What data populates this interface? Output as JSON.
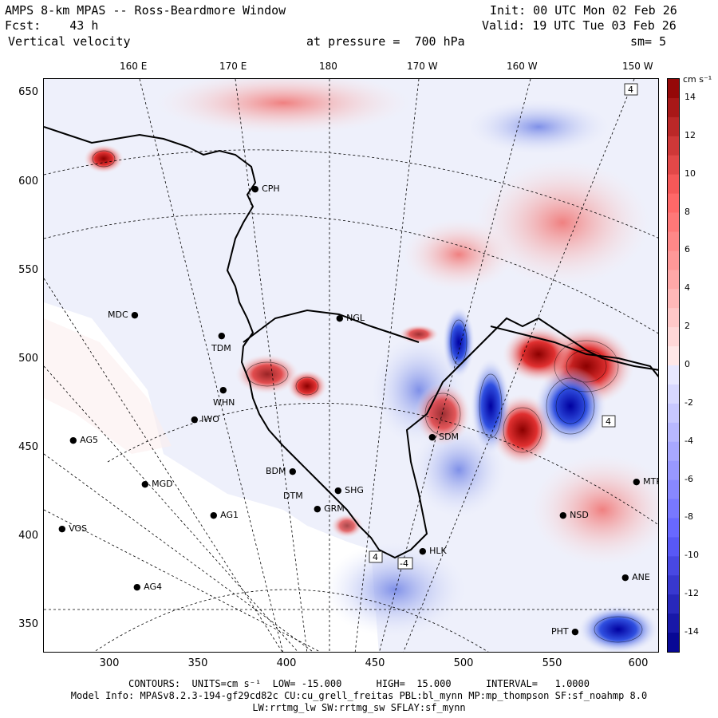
{
  "header": {
    "title": "AMPS 8-km MPAS -- Ross-Beardmore Window",
    "fcst_label": "Fcst:",
    "fcst_value": "43 h",
    "field": "Vertical velocity",
    "init": "Init: 00 UTC Mon 02 Feb 26",
    "valid": "Valid: 19 UTC Tue 03 Feb 26",
    "pressure": "at pressure =  700 hPa",
    "smoothing": "sm= 5"
  },
  "lon_labels": [
    "160 E",
    "170 E",
    "180",
    "170 W",
    "160 W",
    "150 W"
  ],
  "y_ticks": [
    "650",
    "600",
    "550",
    "500",
    "450",
    "400",
    "350"
  ],
  "x_ticks": [
    "300",
    "350",
    "400",
    "450",
    "500",
    "550",
    "600"
  ],
  "colorbar": {
    "units": "cm s⁻¹",
    "labels": [
      "14",
      "12",
      "10",
      "8",
      "6",
      "4",
      "2",
      "0",
      "-2",
      "-4",
      "-6",
      "-8",
      "-10",
      "-12",
      "-14"
    ],
    "min": -15,
    "max": 15
  },
  "stations": [
    {
      "name": "CPH"
    },
    {
      "name": "MDC"
    },
    {
      "name": "TDM"
    },
    {
      "name": "NGL"
    },
    {
      "name": "WHN"
    },
    {
      "name": "IWO"
    },
    {
      "name": "AG5"
    },
    {
      "name": "SDM"
    },
    {
      "name": "MGD"
    },
    {
      "name": "BDM"
    },
    {
      "name": "SHG"
    },
    {
      "name": "DTM"
    },
    {
      "name": "GRM"
    },
    {
      "name": "AG1"
    },
    {
      "name": "VOS"
    },
    {
      "name": "HLK"
    },
    {
      "name": "AG4"
    },
    {
      "name": "MTR"
    },
    {
      "name": "NSD"
    },
    {
      "name": "ANE"
    },
    {
      "name": "PHT"
    }
  ],
  "footer": {
    "contours_line": "CONTOURS:  UNITS=cm s⁻¹  LOW= -15.000      HIGH=  15.000      INTERVAL=   1.0000",
    "model_line": "Model Info: MPASv8.2.3-194-gf29cd82c CU:cu_grell_freitas PBL:bl_mynn MP:mp_thompson SF:sf_noahmp 8.0",
    "physics_line": "LW:rrtmg_lw SW:rrtmg_sw SFLAY:sf_mynn"
  }
}
